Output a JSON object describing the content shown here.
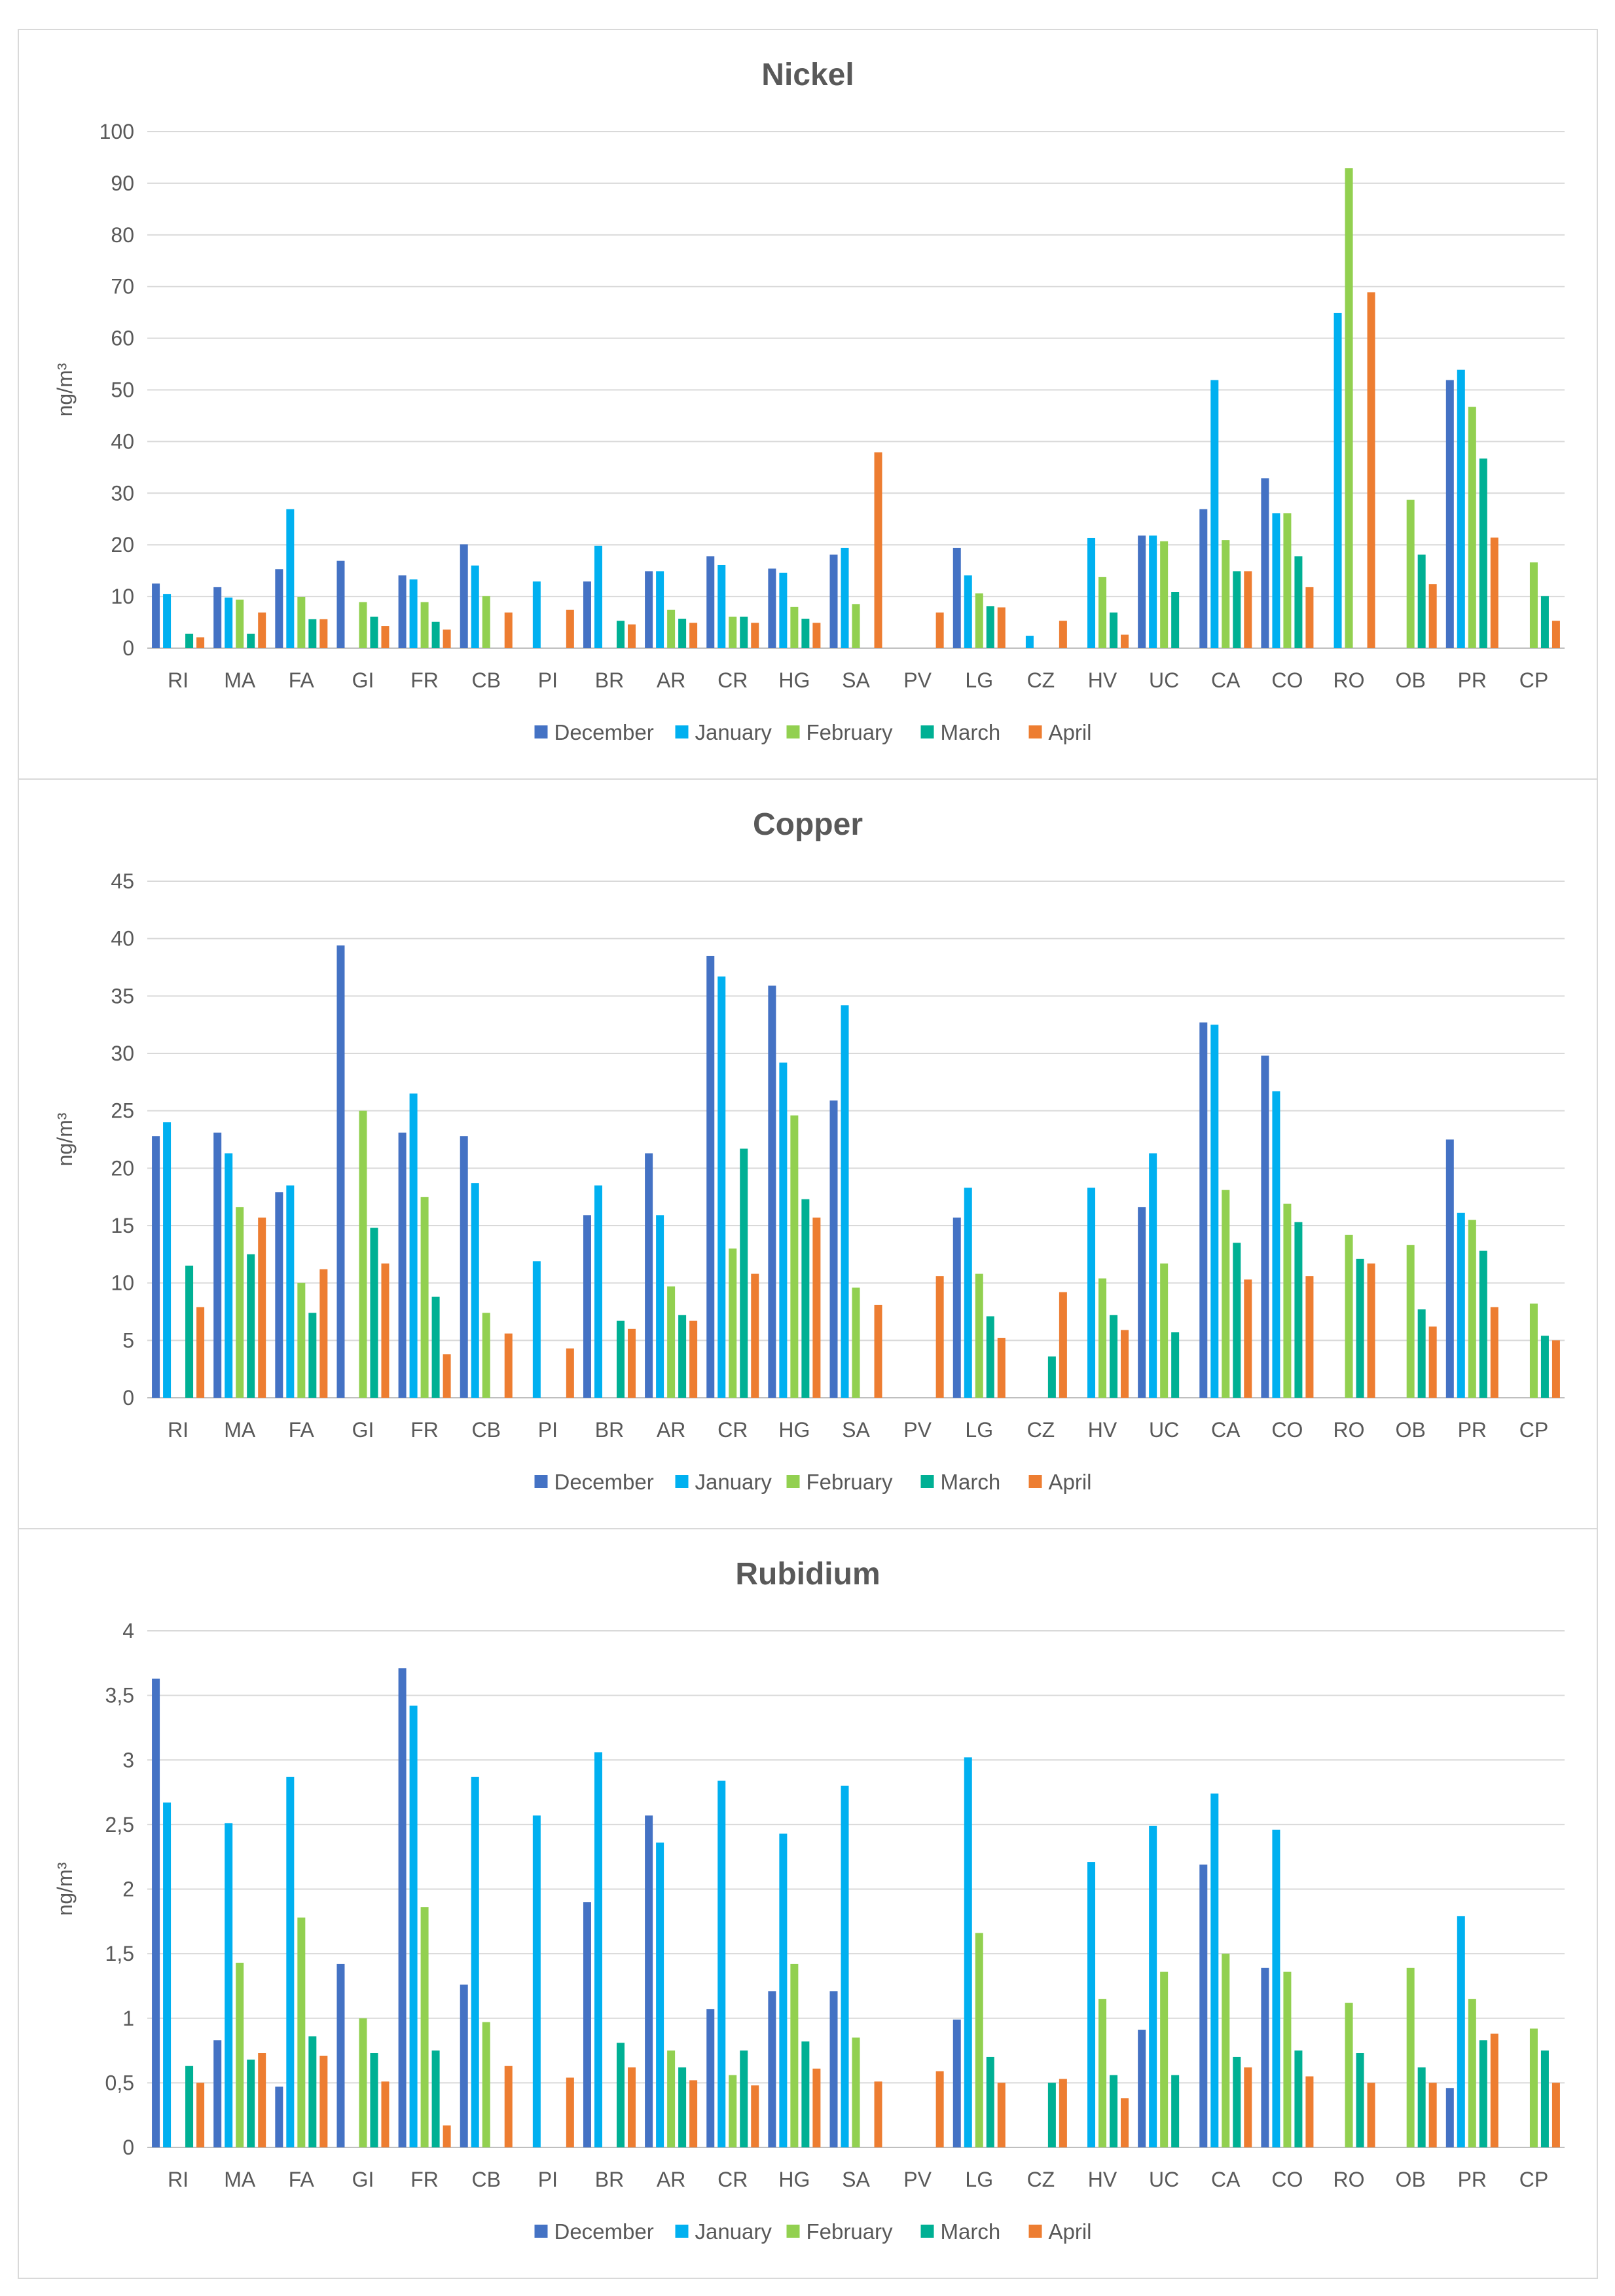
{
  "colors": {
    "December": "#4472C4",
    "January": "#00B0F0",
    "February": "#92D050",
    "March": "#00B094",
    "April": "#ED7D31"
  },
  "chart_data": [
    {
      "type": "bar",
      "title": "Nickel",
      "ylabel": "ng/m³",
      "xlabel": "",
      "ylim": [
        0,
        100
      ],
      "yticks": [
        "0",
        "10",
        "20",
        "30",
        "40",
        "50",
        "60",
        "70",
        "80",
        "90",
        "100"
      ],
      "ytick_values": [
        0,
        10,
        20,
        30,
        40,
        50,
        60,
        70,
        80,
        90,
        100
      ],
      "legend_position": "bottom",
      "grid": true,
      "categories": [
        "RI",
        "MA",
        "FA",
        "GI",
        "FR",
        "CB",
        "PI",
        "BR",
        "AR",
        "CR",
        "HG",
        "SA",
        "PV",
        "LG",
        "CZ",
        "HV",
        "UC",
        "CA",
        "CO",
        "RO",
        "OB",
        "PR",
        "CP"
      ],
      "series": [
        {
          "name": "December",
          "values": [
            12.5,
            11.8,
            15.3,
            16.9,
            14.1,
            20.1,
            null,
            12.9,
            14.9,
            17.8,
            15.4,
            18.1,
            null,
            19.4,
            null,
            null,
            21.8,
            26.9,
            32.9,
            null,
            null,
            51.9,
            null
          ]
        },
        {
          "name": "January",
          "values": [
            10.5,
            9.8,
            26.9,
            null,
            13.3,
            16.0,
            12.9,
            19.8,
            14.9,
            16.1,
            14.6,
            19.4,
            null,
            14.1,
            2.4,
            21.3,
            21.8,
            51.9,
            26.1,
            64.9,
            null,
            53.9,
            null
          ]
        },
        {
          "name": "February",
          "values": [
            null,
            9.4,
            9.9,
            8.9,
            8.9,
            10.1,
            null,
            null,
            7.4,
            6.1,
            8.0,
            8.5,
            null,
            10.6,
            null,
            13.8,
            20.7,
            20.9,
            26.1,
            92.9,
            28.7,
            46.7,
            16.6
          ]
        },
        {
          "name": "March",
          "values": [
            2.8,
            2.8,
            5.6,
            6.1,
            5.1,
            null,
            null,
            5.3,
            5.7,
            6.1,
            5.7,
            null,
            null,
            8.1,
            null,
            6.9,
            10.9,
            14.9,
            17.8,
            null,
            18.1,
            36.7,
            10.1
          ]
        },
        {
          "name": "April",
          "values": [
            2.1,
            6.9,
            5.6,
            4.3,
            3.6,
            6.9,
            7.4,
            4.6,
            4.9,
            4.9,
            4.9,
            37.9,
            6.9,
            7.9,
            5.3,
            2.6,
            null,
            14.9,
            11.8,
            68.9,
            12.4,
            21.4,
            5.3
          ]
        }
      ]
    },
    {
      "type": "bar",
      "title": "Copper",
      "ylabel": "ng/m³",
      "xlabel": "",
      "ylim": [
        0,
        45
      ],
      "yticks": [
        "0",
        "5",
        "10",
        "15",
        "20",
        "25",
        "30",
        "35",
        "40",
        "45"
      ],
      "ytick_values": [
        0,
        5,
        10,
        15,
        20,
        25,
        30,
        35,
        40,
        45
      ],
      "legend_position": "bottom",
      "grid": true,
      "categories": [
        "RI",
        "MA",
        "FA",
        "GI",
        "FR",
        "CB",
        "PI",
        "BR",
        "AR",
        "CR",
        "HG",
        "SA",
        "PV",
        "LG",
        "CZ",
        "HV",
        "UC",
        "CA",
        "CO",
        "RO",
        "OB",
        "PR",
        "CP"
      ],
      "series": [
        {
          "name": "December",
          "values": [
            22.8,
            23.1,
            17.9,
            39.4,
            23.1,
            22.8,
            null,
            15.9,
            21.3,
            38.5,
            35.9,
            25.9,
            null,
            15.7,
            null,
            null,
            16.6,
            32.7,
            29.8,
            null,
            null,
            22.5,
            null
          ]
        },
        {
          "name": "January",
          "values": [
            24.0,
            21.3,
            18.5,
            null,
            26.5,
            18.7,
            11.9,
            18.5,
            15.9,
            36.7,
            29.2,
            34.2,
            null,
            18.3,
            null,
            18.3,
            21.3,
            32.5,
            26.7,
            null,
            null,
            16.1,
            null
          ]
        },
        {
          "name": "February",
          "values": [
            null,
            16.6,
            10.0,
            25.0,
            17.5,
            7.4,
            null,
            null,
            9.7,
            13.0,
            24.6,
            9.6,
            null,
            10.8,
            null,
            10.4,
            11.7,
            18.1,
            16.9,
            14.2,
            13.3,
            15.5,
            8.2
          ]
        },
        {
          "name": "March",
          "values": [
            11.5,
            12.5,
            7.4,
            14.8,
            8.8,
            null,
            null,
            6.7,
            7.2,
            21.7,
            17.3,
            null,
            null,
            7.1,
            3.6,
            7.2,
            5.7,
            13.5,
            15.3,
            12.1,
            7.7,
            12.8,
            5.4
          ]
        },
        {
          "name": "April",
          "values": [
            7.9,
            15.7,
            11.2,
            11.7,
            3.8,
            5.6,
            4.3,
            6.0,
            6.7,
            10.8,
            15.7,
            8.1,
            10.6,
            5.2,
            9.2,
            5.9,
            null,
            10.3,
            10.6,
            11.7,
            6.2,
            7.9,
            5.0
          ]
        }
      ]
    },
    {
      "type": "bar",
      "title": "Rubidium",
      "ylabel": "ng/m³",
      "xlabel": "",
      "ylim": [
        0,
        4
      ],
      "yticks": [
        "0",
        "0,5",
        "1",
        "1,5",
        "2",
        "2,5",
        "3",
        "3,5",
        "4"
      ],
      "ytick_values": [
        0,
        0.5,
        1,
        1.5,
        2,
        2.5,
        3,
        3.5,
        4
      ],
      "legend_position": "bottom",
      "grid": true,
      "categories": [
        "RI",
        "MA",
        "FA",
        "GI",
        "FR",
        "CB",
        "PI",
        "BR",
        "AR",
        "CR",
        "HG",
        "SA",
        "PV",
        "LG",
        "CZ",
        "HV",
        "UC",
        "CA",
        "CO",
        "RO",
        "OB",
        "PR",
        "CP"
      ],
      "series": [
        {
          "name": "December",
          "values": [
            3.63,
            0.83,
            0.47,
            1.42,
            3.71,
            1.26,
            null,
            1.9,
            2.57,
            1.07,
            1.21,
            1.21,
            null,
            0.99,
            null,
            null,
            0.91,
            2.19,
            1.39,
            null,
            null,
            0.46,
            null
          ]
        },
        {
          "name": "January",
          "values": [
            2.67,
            2.51,
            2.87,
            null,
            3.42,
            2.87,
            2.57,
            3.06,
            2.36,
            2.84,
            2.43,
            2.8,
            null,
            3.02,
            null,
            2.21,
            2.49,
            2.74,
            2.46,
            null,
            null,
            1.79,
            null
          ]
        },
        {
          "name": "February",
          "values": [
            null,
            1.43,
            1.78,
            1.0,
            1.86,
            0.97,
            null,
            null,
            0.75,
            0.56,
            1.42,
            0.85,
            null,
            1.66,
            null,
            1.15,
            1.36,
            1.5,
            1.36,
            1.12,
            1.39,
            1.15,
            0.92
          ]
        },
        {
          "name": "March",
          "values": [
            0.63,
            0.68,
            0.86,
            0.73,
            0.75,
            null,
            null,
            0.81,
            0.62,
            0.75,
            0.82,
            null,
            null,
            0.7,
            0.5,
            0.56,
            0.56,
            0.7,
            0.75,
            0.73,
            0.62,
            0.83,
            0.75
          ]
        },
        {
          "name": "April",
          "values": [
            0.5,
            0.73,
            0.71,
            0.51,
            0.17,
            0.63,
            0.54,
            0.62,
            0.52,
            0.48,
            0.61,
            0.51,
            0.59,
            0.5,
            0.53,
            0.38,
            null,
            0.62,
            0.55,
            0.5,
            0.5,
            0.88,
            0.5
          ]
        }
      ]
    }
  ]
}
